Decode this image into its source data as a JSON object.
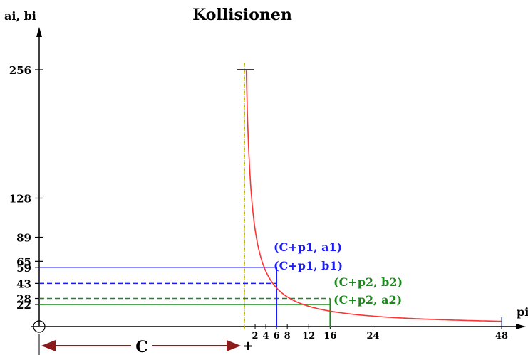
{
  "chart_data": {
    "type": "line",
    "title": "Kollisionen",
    "ylabel": "ai, bi",
    "xlabel": "pi",
    "y_ticks": [
      22,
      28,
      43,
      59,
      65,
      89,
      128,
      256
    ],
    "x_ticks": [
      2,
      4,
      6,
      8,
      12,
      16,
      24,
      48
    ],
    "xlim": [
      0,
      48
    ],
    "ylim": [
      0,
      256
    ],
    "curve": {
      "description": "ai = 256 / pi",
      "x": [
        1,
        1.25,
        1.5,
        2,
        2.5,
        3,
        3.5,
        4,
        5,
        6,
        7,
        8,
        10,
        12,
        14,
        16,
        20,
        24,
        30,
        36,
        42,
        48
      ],
      "y": [
        256,
        204.8,
        170.7,
        128,
        102.4,
        85.3,
        73.1,
        64,
        51.2,
        42.7,
        36.6,
        32,
        25.6,
        21.3,
        18.3,
        16,
        12.8,
        10.7,
        8.5,
        7.1,
        6.1,
        5.3
      ]
    },
    "reference_lines": [
      {
        "y": 59,
        "x": 6,
        "style": "solid",
        "color": "#1a1aff"
      },
      {
        "y": 43,
        "x": 6,
        "style": "dashed",
        "color": "#1a1aff"
      },
      {
        "y": 28,
        "x": 16,
        "style": "dashed",
        "color": "#1a8a1a"
      },
      {
        "y": 22,
        "x": 16,
        "style": "solid",
        "color": "#1a8a1a"
      }
    ],
    "annotations": [
      {
        "text": "(C+p1, a1)",
        "color": "#1a1aff"
      },
      {
        "text": "(C+p1, b1)",
        "color": "#1a1aff"
      },
      {
        "text": "(C+p2, b2)",
        "color": "#1a8a1a"
      },
      {
        "text": "(C+p2, a2)",
        "color": "#1a8a1a"
      }
    ],
    "offset_label": "C",
    "colors": {
      "curve": "#ff3333",
      "blue": "#1a1aff",
      "green": "#1a8a1a",
      "offset": "#8b1a1a",
      "vline": "#e6d600"
    }
  }
}
